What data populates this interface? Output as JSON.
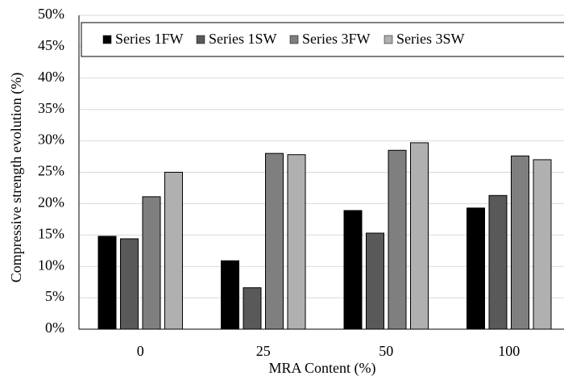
{
  "chart_data": {
    "type": "bar",
    "x_label": "MRA Content (%)",
    "y_label": "Compressive strength evolution (%)",
    "categories": [
      "0",
      "25",
      "50",
      "100"
    ],
    "series": [
      {
        "name": "Series 1FW",
        "color": "#000000",
        "values": [
          14.8,
          10.9,
          18.9,
          19.3
        ]
      },
      {
        "name": "Series 1SW",
        "color": "#595959",
        "values": [
          14.4,
          6.6,
          15.3,
          21.3
        ]
      },
      {
        "name": "Series 3FW",
        "color": "#7f7f7f",
        "values": [
          21.1,
          28.0,
          28.5,
          27.6
        ]
      },
      {
        "name": "Series 3SW",
        "color": "#b0b0b0",
        "values": [
          25.0,
          27.8,
          29.7,
          27.0
        ]
      }
    ],
    "ylim": [
      0,
      50
    ],
    "yticks": [
      {
        "value": 0,
        "label": "0%"
      },
      {
        "value": 5,
        "label": "5%"
      },
      {
        "value": 10,
        "label": "10%"
      },
      {
        "value": 15,
        "label": "15%"
      },
      {
        "value": 20,
        "label": "20%"
      },
      {
        "value": 25,
        "label": "25%"
      },
      {
        "value": 30,
        "label": "30%"
      },
      {
        "value": 35,
        "label": "35%"
      },
      {
        "value": 40,
        "label": "40%"
      },
      {
        "value": 45,
        "label": "45%"
      },
      {
        "value": 50,
        "label": "50%"
      }
    ],
    "grid": true,
    "legend": "top"
  }
}
